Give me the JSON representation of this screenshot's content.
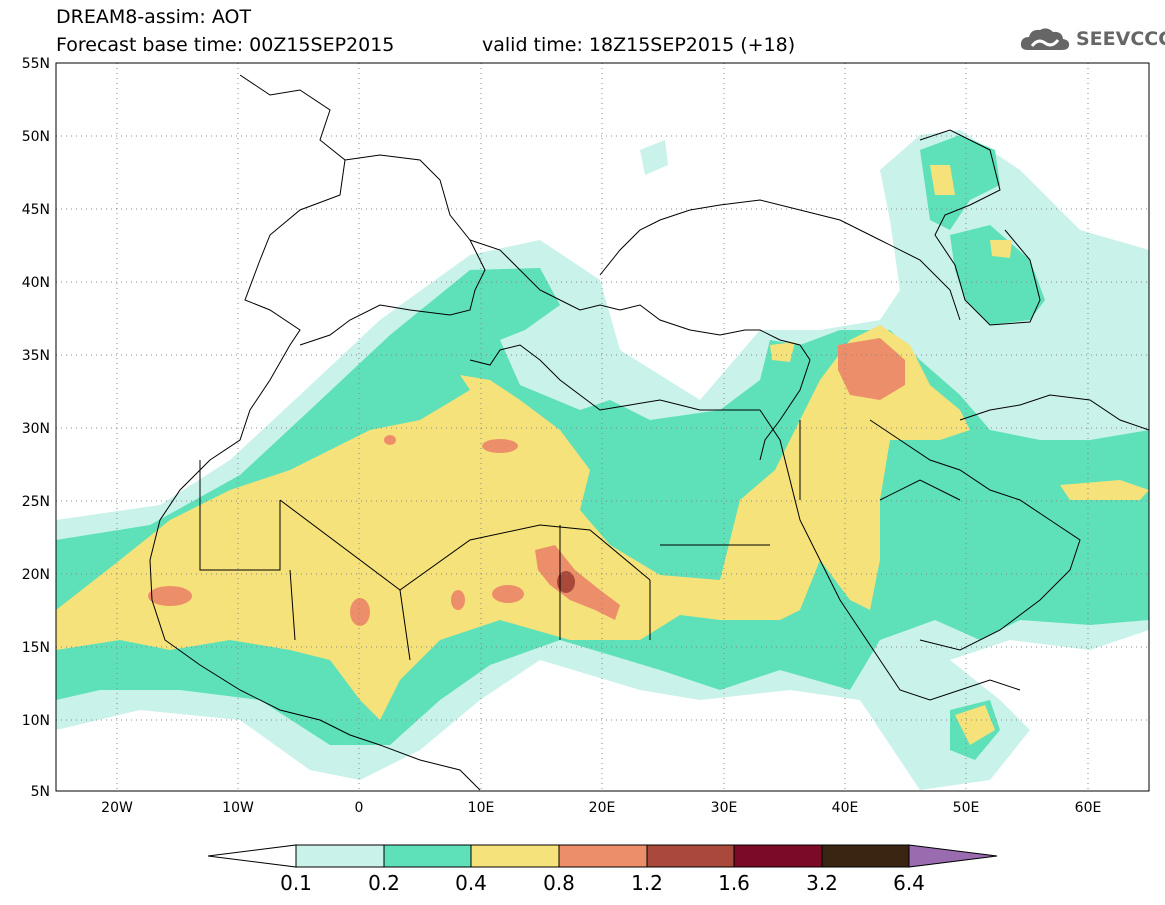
{
  "header": {
    "title": "DREAM8-assim: AOT",
    "base_time": "Forecast base time: 00Z15SEP2015",
    "valid_time": "valid time: 18Z15SEP2015 (+18)"
  },
  "logo": {
    "text": "SEEVCCC",
    "icon": "cloud-logo-icon",
    "color": "#666666"
  },
  "map": {
    "lat_labels": [
      "55N",
      "50N",
      "45N",
      "40N",
      "35N",
      "30N",
      "25N",
      "20N",
      "15N",
      "10N",
      "5N"
    ],
    "lon_labels": [
      "20W",
      "10W",
      "0",
      "10E",
      "20E",
      "30E",
      "40E",
      "50E",
      "60E"
    ],
    "lat_range": [
      5,
      55
    ],
    "lon_range": [
      -25,
      65
    ],
    "grid": "dotted"
  },
  "colorbar": {
    "labels": [
      "0.1",
      "0.2",
      "0.4",
      "0.8",
      "1.2",
      "1.6",
      "3.2",
      "6.4"
    ],
    "colors": [
      "#ffffff",
      "#c8f2ea",
      "#5ee0b8",
      "#f5e27a",
      "#ed8e6a",
      "#a8493b",
      "#7a0a26",
      "#3a2512",
      "#9b6bb0"
    ]
  }
}
